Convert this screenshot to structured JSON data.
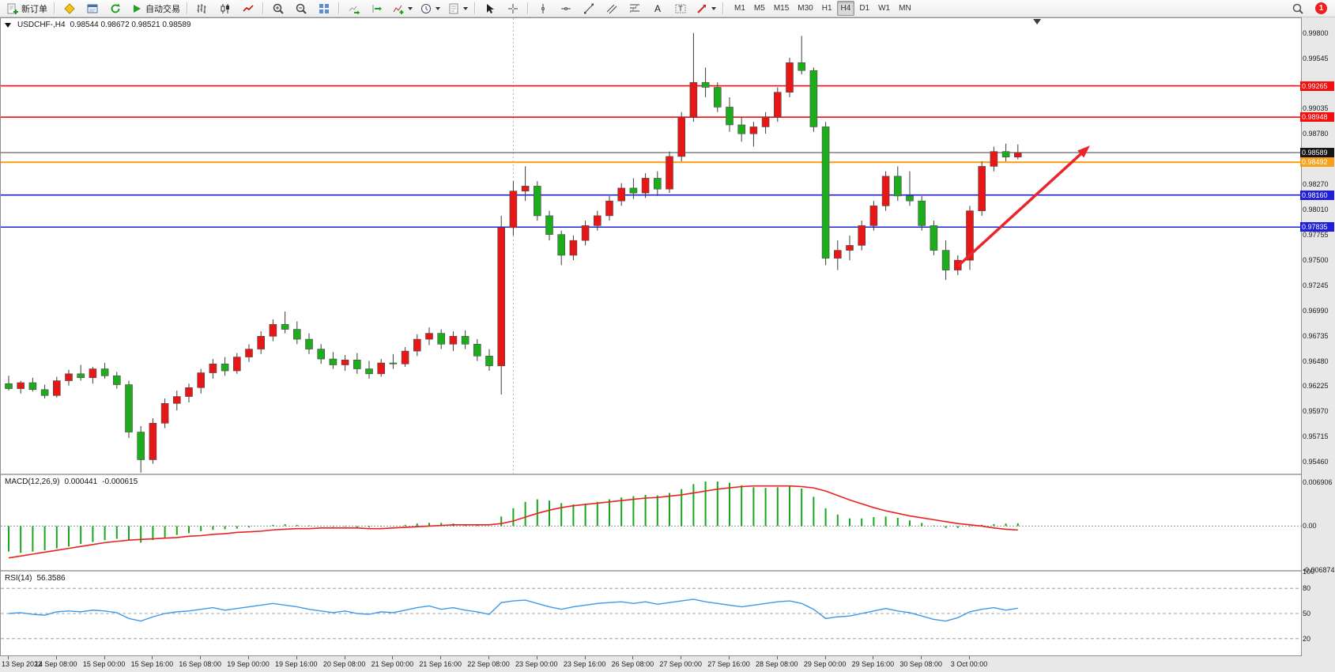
{
  "toolbar": {
    "new_order_label": "新订单",
    "autotrade_label": "自动交易",
    "text_icon_glyph": "A",
    "label_icon_glyph": "T",
    "timeframes": [
      "M1",
      "M5",
      "M15",
      "M30",
      "H1",
      "H4",
      "D1",
      "W1",
      "MN"
    ],
    "active_timeframe": "H4",
    "notification_badge": "1"
  },
  "chart": {
    "symbol_label": "USDCHF-,H4",
    "ohlc_label": "0.98544 0.98672 0.98521 0.98589"
  },
  "chart_data": {
    "type": "candlestick",
    "symbol": "USDCHF",
    "timeframe": "H4",
    "colors": {
      "up": "#e81717",
      "down": "#1cac1c",
      "wick": "#3c3c3c",
      "body_stroke": "#4a4a4a",
      "macd_hist": "#18a61c",
      "macd_signal": "#e82222",
      "rsi_line": "#3f99e8"
    },
    "price_axis": {
      "min": 0.9534,
      "max": 0.9995,
      "ticks": [
        {
          "value": 0.998,
          "text": "0.99800"
        },
        {
          "value": 0.99545,
          "text": "0.99545"
        },
        {
          "value": 0.99035,
          "text": "0.99035"
        },
        {
          "value": 0.9878,
          "text": "0.98780"
        },
        {
          "value": 0.9827,
          "text": "0.98270"
        },
        {
          "value": 0.9801,
          "text": "0.98010"
        },
        {
          "value": 0.97755,
          "text": "0.97755"
        },
        {
          "value": 0.975,
          "text": "0.97500"
        },
        {
          "value": 0.97245,
          "text": "0.97245"
        },
        {
          "value": 0.9699,
          "text": "0.96990"
        },
        {
          "value": 0.96735,
          "text": "0.96735"
        },
        {
          "value": 0.9648,
          "text": "0.96480"
        },
        {
          "value": 0.96225,
          "text": "0.96225"
        },
        {
          "value": 0.9597,
          "text": "0.95970"
        },
        {
          "value": 0.95715,
          "text": "0.95715"
        },
        {
          "value": 0.9546,
          "text": "0.95460"
        }
      ]
    },
    "candles": [
      [
        0.9625,
        0.9633,
        0.9618,
        0.962
      ],
      [
        0.962,
        0.9628,
        0.9615,
        0.9626
      ],
      [
        0.9626,
        0.9631,
        0.9617,
        0.9619
      ],
      [
        0.9619,
        0.9624,
        0.961,
        0.9613
      ],
      [
        0.9613,
        0.9632,
        0.9611,
        0.9628
      ],
      [
        0.9628,
        0.9639,
        0.9623,
        0.9635
      ],
      [
        0.9635,
        0.9644,
        0.9628,
        0.9631
      ],
      [
        0.9631,
        0.9642,
        0.9625,
        0.964
      ],
      [
        0.964,
        0.9646,
        0.963,
        0.9633
      ],
      [
        0.9633,
        0.9637,
        0.962,
        0.9624
      ],
      [
        0.9624,
        0.9628,
        0.957,
        0.9576
      ],
      [
        0.9576,
        0.9582,
        0.9535,
        0.9548
      ],
      [
        0.9548,
        0.959,
        0.9544,
        0.9585
      ],
      [
        0.9585,
        0.961,
        0.958,
        0.9605
      ],
      [
        0.9605,
        0.9618,
        0.9598,
        0.9612
      ],
      [
        0.9612,
        0.9625,
        0.9606,
        0.9621
      ],
      [
        0.9621,
        0.964,
        0.9615,
        0.9636
      ],
      [
        0.9636,
        0.965,
        0.963,
        0.9645
      ],
      [
        0.9645,
        0.9652,
        0.9633,
        0.9638
      ],
      [
        0.9638,
        0.9656,
        0.9635,
        0.9652
      ],
      [
        0.9652,
        0.9665,
        0.9647,
        0.966
      ],
      [
        0.966,
        0.9678,
        0.9655,
        0.9673
      ],
      [
        0.9673,
        0.969,
        0.9668,
        0.9685
      ],
      [
        0.9685,
        0.9698,
        0.9676,
        0.968
      ],
      [
        0.968,
        0.9688,
        0.9665,
        0.967
      ],
      [
        0.967,
        0.9676,
        0.9655,
        0.966
      ],
      [
        0.966,
        0.9665,
        0.9645,
        0.965
      ],
      [
        0.965,
        0.9657,
        0.964,
        0.9644
      ],
      [
        0.9644,
        0.9654,
        0.9638,
        0.9649
      ],
      [
        0.9649,
        0.9656,
        0.9635,
        0.964
      ],
      [
        0.964,
        0.9648,
        0.963,
        0.9635
      ],
      [
        0.9635,
        0.965,
        0.9632,
        0.9646
      ],
      [
        0.9646,
        0.9655,
        0.964,
        0.9645
      ],
      [
        0.9645,
        0.9662,
        0.9642,
        0.9658
      ],
      [
        0.9658,
        0.9675,
        0.9653,
        0.967
      ],
      [
        0.967,
        0.9682,
        0.9664,
        0.9676
      ],
      [
        0.9676,
        0.968,
        0.966,
        0.9665
      ],
      [
        0.9665,
        0.9678,
        0.9658,
        0.9673
      ],
      [
        0.9673,
        0.9679,
        0.966,
        0.9665
      ],
      [
        0.9665,
        0.967,
        0.9648,
        0.9653
      ],
      [
        0.9653,
        0.966,
        0.9638,
        0.9643
      ],
      [
        0.9643,
        0.9795,
        0.9614,
        0.9783
      ],
      [
        0.9783,
        0.983,
        0.9775,
        0.982
      ],
      [
        0.982,
        0.9845,
        0.981,
        0.9825
      ],
      [
        0.9825,
        0.983,
        0.979,
        0.9795
      ],
      [
        0.9795,
        0.98,
        0.977,
        0.9776
      ],
      [
        0.9776,
        0.978,
        0.9745,
        0.9755
      ],
      [
        0.9755,
        0.9775,
        0.975,
        0.977
      ],
      [
        0.977,
        0.979,
        0.9765,
        0.9785
      ],
      [
        0.9785,
        0.98,
        0.978,
        0.9795
      ],
      [
        0.9795,
        0.9815,
        0.979,
        0.981
      ],
      [
        0.981,
        0.9828,
        0.9805,
        0.9823
      ],
      [
        0.9823,
        0.9833,
        0.9812,
        0.9818
      ],
      [
        0.9818,
        0.9838,
        0.9813,
        0.9833
      ],
      [
        0.9833,
        0.984,
        0.9815,
        0.9822
      ],
      [
        0.9822,
        0.986,
        0.9818,
        0.9855
      ],
      [
        0.9855,
        0.99,
        0.985,
        0.9895
      ],
      [
        0.9895,
        0.998,
        0.989,
        0.993
      ],
      [
        0.993,
        0.9945,
        0.9915,
        0.9925
      ],
      [
        0.9925,
        0.993,
        0.99,
        0.9905
      ],
      [
        0.9905,
        0.9915,
        0.988,
        0.9887
      ],
      [
        0.9887,
        0.9895,
        0.987,
        0.9878
      ],
      [
        0.9878,
        0.989,
        0.9865,
        0.9885
      ],
      [
        0.9885,
        0.99,
        0.9878,
        0.9895
      ],
      [
        0.9895,
        0.9925,
        0.989,
        0.992
      ],
      [
        0.992,
        0.9955,
        0.9915,
        0.995
      ],
      [
        0.995,
        0.9977,
        0.9938,
        0.9942
      ],
      [
        0.9942,
        0.9945,
        0.988,
        0.9885
      ],
      [
        0.9885,
        0.989,
        0.9745,
        0.9752
      ],
      [
        0.9752,
        0.977,
        0.974,
        0.976
      ],
      [
        0.976,
        0.9775,
        0.975,
        0.9765
      ],
      [
        0.9765,
        0.979,
        0.976,
        0.9785
      ],
      [
        0.9785,
        0.981,
        0.978,
        0.9805
      ],
      [
        0.9805,
        0.984,
        0.98,
        0.9835
      ],
      [
        0.9835,
        0.9845,
        0.981,
        0.9815
      ],
      [
        0.9815,
        0.984,
        0.9805,
        0.981
      ],
      [
        0.981,
        0.9815,
        0.978,
        0.9785
      ],
      [
        0.9785,
        0.979,
        0.9755,
        0.976
      ],
      [
        0.976,
        0.977,
        0.973,
        0.974
      ],
      [
        0.974,
        0.9755,
        0.9735,
        0.975
      ],
      [
        0.975,
        0.9805,
        0.974,
        0.98
      ],
      [
        0.98,
        0.985,
        0.9795,
        0.9845
      ],
      [
        0.9845,
        0.9865,
        0.984,
        0.986
      ],
      [
        0.986,
        0.9868,
        0.985,
        0.98544
      ],
      [
        0.98544,
        0.98672,
        0.98521,
        0.98589
      ]
    ],
    "x_label_step": 4,
    "x_labels": [
      "13 Sep 2022",
      "14 Sep 08:00",
      "15 Sep 00:00",
      "15 Sep 16:00",
      "16 Sep 08:00",
      "19 Sep 00:00",
      "19 Sep 16:00",
      "20 Sep 08:00",
      "21 Sep 00:00",
      "21 Sep 16:00",
      "22 Sep 08:00",
      "23 Sep 00:00",
      "23 Sep 16:00",
      "26 Sep 08:00",
      "27 Sep 00:00",
      "27 Sep 16:00",
      "28 Sep 08:00",
      "29 Sep 00:00",
      "29 Sep 16:00",
      "30 Sep 08:00",
      "3 Oct 00:00"
    ],
    "hlines": [
      {
        "price": 0.99265,
        "tag": "0.99265",
        "color": "#f50d0d",
        "width": 1.6
      },
      {
        "price": 0.98948,
        "tag": "0.98948",
        "color": "#f50d0d",
        "width": 1.6
      },
      {
        "price": 0.98492,
        "tag": "0.98492",
        "color": "#f6a21c",
        "width": 2.2
      },
      {
        "price": 0.9816,
        "tag": "0.98160",
        "color": "#1f1fd9",
        "width": 1.6
      },
      {
        "price": 0.97835,
        "tag": "0.97835",
        "color": "#1f1fd9",
        "width": 1.6
      }
    ],
    "current_price": {
      "price": 0.98589,
      "tag": "0.98589",
      "line_color": "#3f3f3f",
      "tag_bg": "#151515"
    },
    "vlines": [
      {
        "index": 42
      }
    ],
    "shift_marker_index": 85.6,
    "arrow": {
      "from_index": 79,
      "from_price": 0.9744,
      "to_index": 90,
      "to_price": 0.9866,
      "color": "#e8262b",
      "width": 3.5
    },
    "macd": {
      "label": "MACD(12,26,9)",
      "main_value": "0.000441",
      "signal_value": "-0.000615",
      "axis_min": -0.0069,
      "axis_max": 0.008,
      "axis_ticks": [
        {
          "value": 0.006906,
          "text": "0.006906"
        },
        {
          "value": 0,
          "text": "0.00"
        },
        {
          "value": -0.006874,
          "text": "-0.006874"
        }
      ],
      "histogram": [
        -0.004,
        -0.0042,
        -0.004,
        -0.0038,
        -0.0035,
        -0.0032,
        -0.0028,
        -0.0025,
        -0.0022,
        -0.002,
        -0.0022,
        -0.0026,
        -0.0022,
        -0.0018,
        -0.0014,
        -0.0011,
        -0.0008,
        -0.0006,
        -0.0005,
        -0.0004,
        -0.0002,
        0.0,
        0.0002,
        0.0003,
        0.0002,
        0.0001,
        0.0,
        -0.0001,
        -0.0001,
        -0.0002,
        -0.0002,
        -0.0001,
        0.0,
        0.0002,
        0.0004,
        0.0005,
        0.0005,
        0.0004,
        0.0003,
        0.0002,
        0.0,
        0.0015,
        0.0028,
        0.0038,
        0.0042,
        0.004,
        0.0036,
        0.0034,
        0.0035,
        0.0038,
        0.0042,
        0.0045,
        0.0047,
        0.0049,
        0.0048,
        0.0052,
        0.0058,
        0.0066,
        0.007,
        0.007,
        0.0068,
        0.0064,
        0.0061,
        0.006,
        0.0061,
        0.0063,
        0.0059,
        0.0046,
        0.0028,
        0.0018,
        0.0012,
        0.0012,
        0.0014,
        0.0015,
        0.0013,
        0.0009,
        0.0005,
        0.0001,
        -0.0003,
        -0.0003,
        -0.0001,
        0.0002,
        0.0003,
        0.0004,
        0.000441
      ],
      "signal_line": [
        -0.005,
        -0.0047,
        -0.0044,
        -0.0041,
        -0.0038,
        -0.0035,
        -0.0032,
        -0.0029,
        -0.0026,
        -0.0024,
        -0.0022,
        -0.0021,
        -0.002,
        -0.0019,
        -0.0018,
        -0.0016,
        -0.0015,
        -0.0013,
        -0.0012,
        -0.001,
        -0.0009,
        -0.0008,
        -0.0006,
        -0.0005,
        -0.0004,
        -0.0004,
        -0.0003,
        -0.0003,
        -0.0003,
        -0.0003,
        -0.0004,
        -0.0004,
        -0.0003,
        -0.0002,
        -0.0001,
        0.0,
        0.0001,
        0.0002,
        0.0002,
        0.0002,
        0.0002,
        0.0004,
        0.0008,
        0.0014,
        0.002,
        0.0025,
        0.0029,
        0.0032,
        0.0034,
        0.0036,
        0.0038,
        0.004,
        0.0042,
        0.0044,
        0.0045,
        0.0047,
        0.0049,
        0.0052,
        0.0055,
        0.0058,
        0.006,
        0.0062,
        0.0063,
        0.0063,
        0.0063,
        0.0063,
        0.0062,
        0.006,
        0.0055,
        0.0048,
        0.0041,
        0.0035,
        0.0029,
        0.0024,
        0.002,
        0.0016,
        0.0013,
        0.001,
        0.0007,
        0.0004,
        0.0002,
        0.0,
        -0.0003,
        -0.0005,
        -0.000615
      ]
    },
    "rsi": {
      "label": "RSI(14)",
      "value": "56.3586",
      "levels": [
        80,
        50,
        20
      ],
      "axis_ticks": [
        {
          "value": 100,
          "text": "100"
        },
        {
          "value": 80,
          "text": "80"
        },
        {
          "value": 50,
          "text": "50"
        },
        {
          "value": 20,
          "text": "20"
        }
      ],
      "values": [
        50,
        51,
        49,
        48,
        52,
        53,
        52,
        54,
        53,
        51,
        44,
        41,
        46,
        50,
        52,
        53,
        55,
        57,
        54,
        56,
        58,
        60,
        62,
        60,
        58,
        55,
        53,
        51,
        53,
        50,
        49,
        52,
        51,
        54,
        57,
        59,
        55,
        57,
        54,
        52,
        49,
        63,
        65,
        66,
        62,
        58,
        55,
        58,
        60,
        62,
        63,
        64,
        62,
        64,
        61,
        63,
        65,
        67,
        64,
        62,
        60,
        58,
        60,
        62,
        64,
        65,
        62,
        55,
        44,
        46,
        47,
        50,
        53,
        56,
        53,
        51,
        47,
        43,
        41,
        45,
        52,
        55,
        57,
        54,
        56.36
      ]
    }
  }
}
